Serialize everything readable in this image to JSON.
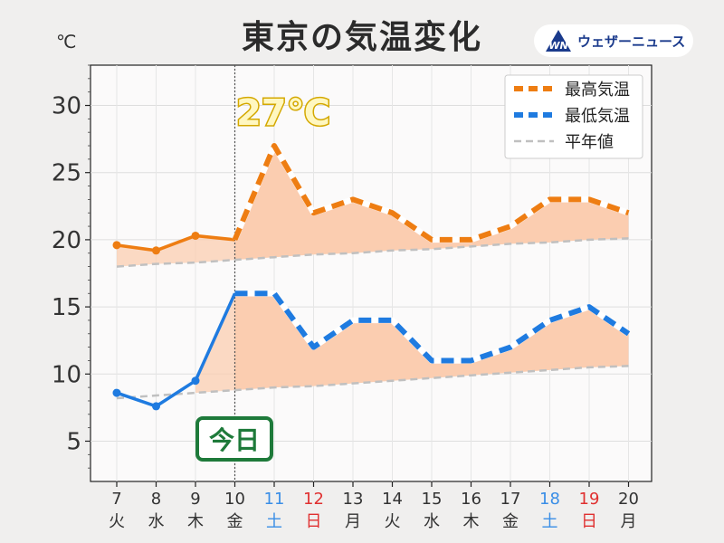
{
  "title": "東京の気温変化",
  "unit_label": "℃",
  "brand": {
    "name": "ウェザーニュース",
    "icon": "wn-logo-icon"
  },
  "today_label": "今日",
  "peak_label": "27℃",
  "colors": {
    "high": "#ee7d12",
    "low": "#1f7be0",
    "normal": "#c0c0c0",
    "fill": "#fbcdb0",
    "saturday": "#3a8ee6",
    "sunday": "#e03030",
    "today_badge": "#1e7a3a",
    "peak": "#d4a800"
  },
  "chart_data": {
    "type": "line",
    "title": "東京の気温変化",
    "ylabel": "℃",
    "xlabel": "",
    "ylim": [
      2,
      33
    ],
    "yticks": [
      5,
      10,
      15,
      20,
      25,
      30
    ],
    "grid": true,
    "legend_position": "top-right",
    "today_index": 3,
    "categories": [
      {
        "day": "7",
        "weekday": "火",
        "type": "weekday"
      },
      {
        "day": "8",
        "weekday": "水",
        "type": "weekday"
      },
      {
        "day": "9",
        "weekday": "木",
        "type": "weekday"
      },
      {
        "day": "10",
        "weekday": "金",
        "type": "weekday"
      },
      {
        "day": "11",
        "weekday": "土",
        "type": "saturday"
      },
      {
        "day": "12",
        "weekday": "日",
        "type": "sunday"
      },
      {
        "day": "13",
        "weekday": "月",
        "type": "weekday"
      },
      {
        "day": "14",
        "weekday": "火",
        "type": "weekday"
      },
      {
        "day": "15",
        "weekday": "水",
        "type": "weekday"
      },
      {
        "day": "16",
        "weekday": "木",
        "type": "weekday"
      },
      {
        "day": "17",
        "weekday": "金",
        "type": "weekday"
      },
      {
        "day": "18",
        "weekday": "土",
        "type": "saturday"
      },
      {
        "day": "19",
        "weekday": "日",
        "type": "sunday"
      },
      {
        "day": "20",
        "weekday": "月",
        "type": "weekday"
      }
    ],
    "series": [
      {
        "name": "最高気温",
        "key": "high",
        "values": [
          19.6,
          19.2,
          20.3,
          20.0,
          27,
          22,
          23,
          22,
          20,
          20,
          21,
          23,
          23,
          22
        ]
      },
      {
        "name": "最低気温",
        "key": "low",
        "values": [
          8.6,
          7.6,
          9.5,
          16,
          16,
          12,
          14,
          14,
          11,
          11,
          12,
          14,
          15,
          13
        ]
      },
      {
        "name": "平年値",
        "key": "normal_high",
        "values": [
          18.0,
          18.2,
          18.3,
          18.5,
          18.7,
          18.9,
          19.0,
          19.2,
          19.3,
          19.5,
          19.7,
          19.8,
          20.0,
          20.1
        ]
      },
      {
        "name": "平年値",
        "key": "normal_low",
        "values": [
          8.2,
          8.4,
          8.6,
          8.8,
          9.0,
          9.1,
          9.3,
          9.5,
          9.7,
          9.9,
          10.1,
          10.3,
          10.5,
          10.6
        ]
      }
    ]
  }
}
